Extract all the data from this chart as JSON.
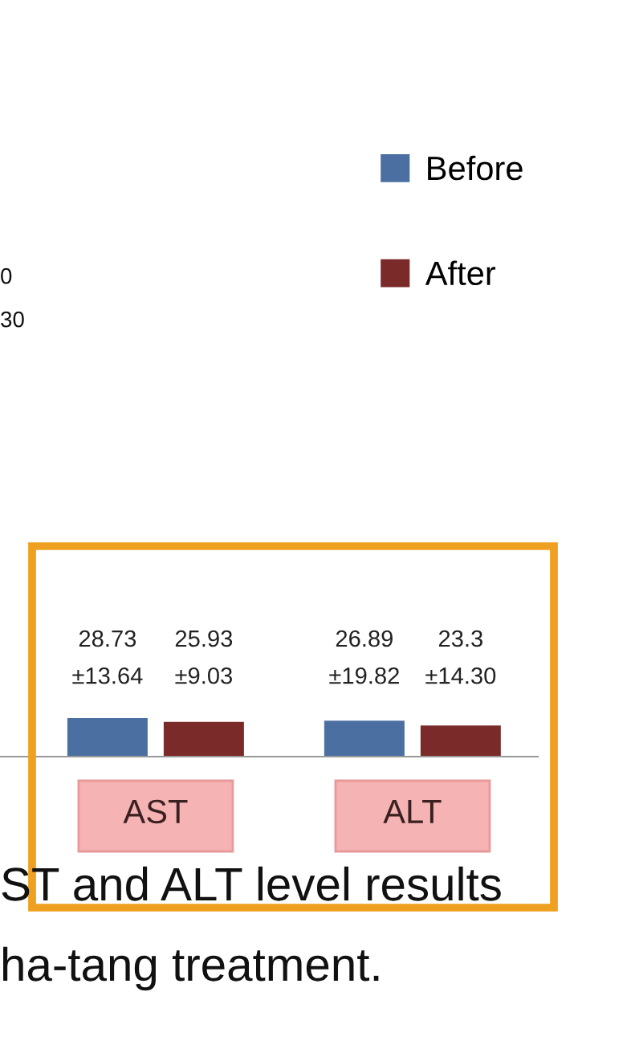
{
  "chart_data": {
    "type": "bar",
    "categories": [
      "AST",
      "ALT"
    ],
    "series": [
      {
        "name": "Before",
        "color": "#4a6fa0",
        "values": [
          28.73,
          26.89
        ],
        "value_labels": [
          "28.73\n±13.64",
          "26.89\n±19.82"
        ]
      },
      {
        "name": "After",
        "color": "#7b2a2a",
        "values": [
          25.93,
          23.3
        ],
        "value_labels": [
          "25.93\n±9.03",
          "23.3\n±14.30"
        ]
      }
    ],
    "legend": "top right",
    "annotations": [
      "0",
      "30",
      "ST and ALT level results",
      "ha-tang treatment."
    ]
  }
}
